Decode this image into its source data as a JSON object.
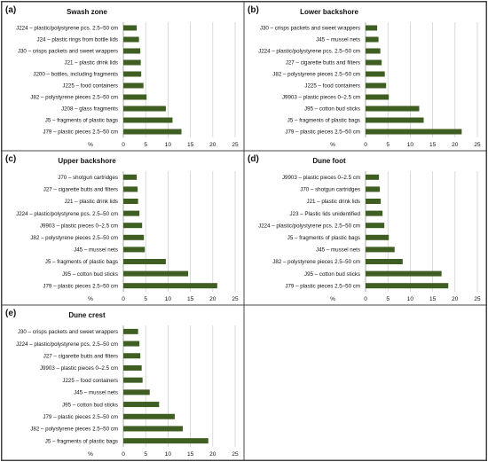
{
  "chart_data": [
    {
      "type": "bar",
      "panel_label": "(a)",
      "title": "Swash zone",
      "xlabel": "%",
      "xlim": [
        0,
        25
      ],
      "xticks": [
        0,
        5,
        10,
        15,
        20,
        25
      ],
      "grid": true,
      "orientation": "horizontal",
      "categories": [
        "J224 – plastic/polystyrene pcs. 2.5–50 cm",
        "J24 – plastic rings from bottle lids",
        "J30 – crisps packets and sweet wrappers",
        "J21 – plastic drink lids",
        "J200 – bottles, including fragments",
        "J225 – food containers",
        "J82 – polystyrene pieces 2.5–50 cm",
        "J208 – glass fragments",
        "J5 – fragments of plastic bags",
        "J79 – plastic pieces 2.5–50 cm"
      ],
      "values": [
        3.0,
        3.5,
        3.8,
        3.9,
        4.0,
        4.5,
        5.2,
        9.5,
        11.0,
        13.0
      ]
    },
    {
      "type": "bar",
      "panel_label": "(b)",
      "title": "Lower backshore",
      "xlabel": "%",
      "xlim": [
        0,
        25
      ],
      "xticks": [
        0,
        5,
        10,
        15,
        20,
        25
      ],
      "grid": true,
      "orientation": "horizontal",
      "categories": [
        "J30 – crisps packets and sweet wrappers",
        "J45 – mussel nets",
        "J224 – plastic/polystyrene pcs. 2.5–50 cm",
        "J27 – cigarette butts and filters",
        "J82 – polystyrene pieces 2.5–50 cm",
        "J225 – food containers",
        "J9903 – plastic pieces 0–2.5 cm",
        "J95 – cotton bud sticks",
        "J5 – fragments of plastic bags",
        "J79 – plastic pieces 2.5–50 cm"
      ],
      "values": [
        2.6,
        2.9,
        3.3,
        3.6,
        4.3,
        4.6,
        5.2,
        12.0,
        13.0,
        21.5
      ]
    },
    {
      "type": "bar",
      "panel_label": "(c)",
      "title": "Upper backshore",
      "xlabel": "%",
      "xlim": [
        0,
        25
      ],
      "xticks": [
        0,
        5,
        10,
        15,
        20,
        25
      ],
      "grid": true,
      "orientation": "horizontal",
      "categories": [
        "J70 – shotgun cartridges",
        "J27 – cigarette butts and filters",
        "J21 – plastic drink lids",
        "J224 – plastic/polystyrene pcs. 2.5–50 cm",
        "J9903 – plastic pieces 0–2.5 cm",
        "J82 – polystyrene pieces 2.5–50 cm",
        "J45 – mussel nets",
        "J5 – fragments of plastic bags",
        "J95 – cotton bud sticks",
        "J79 – plastic pieces 2.5–50 cm"
      ],
      "values": [
        3.0,
        3.2,
        3.3,
        3.6,
        4.2,
        4.6,
        4.8,
        9.5,
        14.5,
        21.0
      ]
    },
    {
      "type": "bar",
      "panel_label": "(d)",
      "title": "Dune foot",
      "xlabel": "%",
      "xlim": [
        0,
        25
      ],
      "xticks": [
        0,
        5,
        10,
        15,
        20,
        25
      ],
      "grid": true,
      "orientation": "horizontal",
      "categories": [
        "J9903 – plastic pieces 0–2.5 cm",
        "J70 – shotgun cartridges",
        "J21 – plastic drink lids",
        "J23 – Plastic lids unidentified",
        "J224 – plastic/polystyrene pcs. 2.5–50 cm",
        "J5 – fragments of plastic bags",
        "J45 – mussel nets",
        "J82 – polystyrene pieces 2.5–50 cm",
        "J95 – cotton bud sticks",
        "J79 – plastic pieces 2.5–50 cm"
      ],
      "values": [
        3.0,
        3.2,
        3.4,
        3.8,
        4.2,
        5.2,
        6.5,
        8.3,
        17.0,
        18.5
      ]
    },
    {
      "type": "bar",
      "panel_label": "(e)",
      "title": "Dune crest",
      "xlabel": "%",
      "xlim": [
        0,
        25
      ],
      "xticks": [
        0,
        5,
        10,
        15,
        20,
        25
      ],
      "grid": true,
      "orientation": "horizontal",
      "categories": [
        "J30 – crisps packets and sweet wrappers",
        "J224 – plastic/polystyrene pcs. 2.5–50 cm",
        "J27 – cigarette butts and filters",
        "J9903 – plastic pieces 0–2.5 cm",
        "J225 – food containers",
        "J45 – mussel nets",
        "J95 – cotton bud sticks",
        "J79 – plastic pieces 2.5–50 cm",
        "J82 – polystyrene pieces 2.5–50 cm",
        "J5 – fragments of plastic bags"
      ],
      "values": [
        3.3,
        3.6,
        3.8,
        4.1,
        4.3,
        5.9,
        8.0,
        11.5,
        13.3,
        19.0
      ]
    }
  ],
  "colors": {
    "bar": "#3f5e22",
    "grid": "#d0d0d0",
    "border": "#444444",
    "text": "#111111"
  }
}
